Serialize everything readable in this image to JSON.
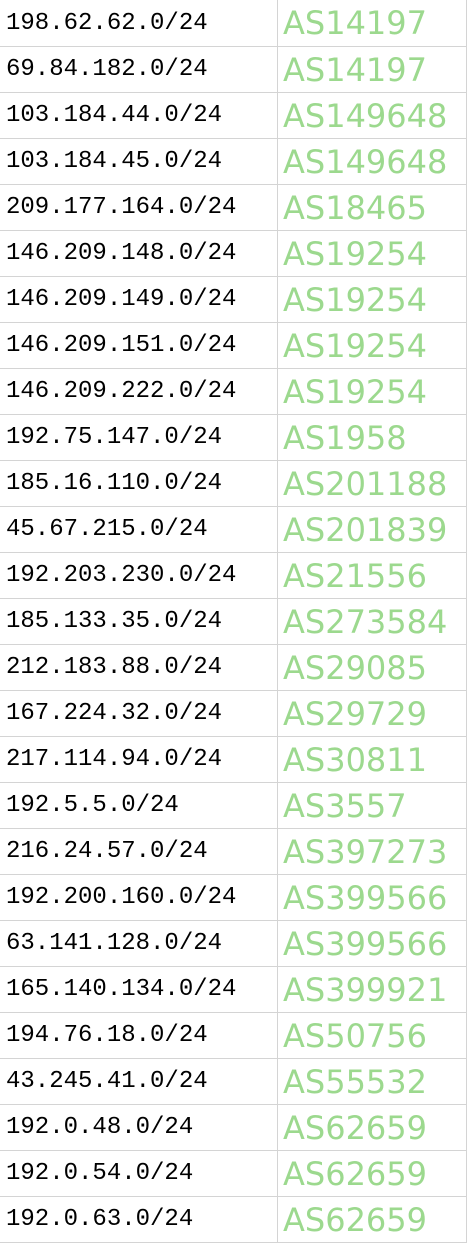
{
  "colors": {
    "asn_text": "#9cd98e",
    "prefix_text": "#000000",
    "grid_line": "#d4d4d4"
  },
  "columns": [
    "prefix",
    "asn"
  ],
  "rows": [
    {
      "prefix": "198.62.62.0/24",
      "asn": "AS14197"
    },
    {
      "prefix": "69.84.182.0/24",
      "asn": "AS14197"
    },
    {
      "prefix": "103.184.44.0/24",
      "asn": "AS149648"
    },
    {
      "prefix": "103.184.45.0/24",
      "asn": "AS149648"
    },
    {
      "prefix": "209.177.164.0/24",
      "asn": "AS18465"
    },
    {
      "prefix": "146.209.148.0/24",
      "asn": "AS19254"
    },
    {
      "prefix": "146.209.149.0/24",
      "asn": "AS19254"
    },
    {
      "prefix": "146.209.151.0/24",
      "asn": "AS19254"
    },
    {
      "prefix": "146.209.222.0/24",
      "asn": "AS19254"
    },
    {
      "prefix": "192.75.147.0/24",
      "asn": "AS1958"
    },
    {
      "prefix": "185.16.110.0/24",
      "asn": "AS201188"
    },
    {
      "prefix": "45.67.215.0/24",
      "asn": "AS201839"
    },
    {
      "prefix": "192.203.230.0/24",
      "asn": "AS21556"
    },
    {
      "prefix": "185.133.35.0/24",
      "asn": "AS273584"
    },
    {
      "prefix": "212.183.88.0/24",
      "asn": "AS29085"
    },
    {
      "prefix": "167.224.32.0/24",
      "asn": "AS29729"
    },
    {
      "prefix": "217.114.94.0/24",
      "asn": "AS30811"
    },
    {
      "prefix": "192.5.5.0/24",
      "asn": "AS3557"
    },
    {
      "prefix": "216.24.57.0/24",
      "asn": "AS397273"
    },
    {
      "prefix": "192.200.160.0/24",
      "asn": "AS399566"
    },
    {
      "prefix": "63.141.128.0/24",
      "asn": "AS399566"
    },
    {
      "prefix": "165.140.134.0/24",
      "asn": "AS399921"
    },
    {
      "prefix": "194.76.18.0/24",
      "asn": "AS50756"
    },
    {
      "prefix": "43.245.41.0/24",
      "asn": "AS55532"
    },
    {
      "prefix": "192.0.48.0/24",
      "asn": "AS62659"
    },
    {
      "prefix": "192.0.54.0/24",
      "asn": "AS62659"
    },
    {
      "prefix": "192.0.63.0/24",
      "asn": "AS62659"
    }
  ]
}
